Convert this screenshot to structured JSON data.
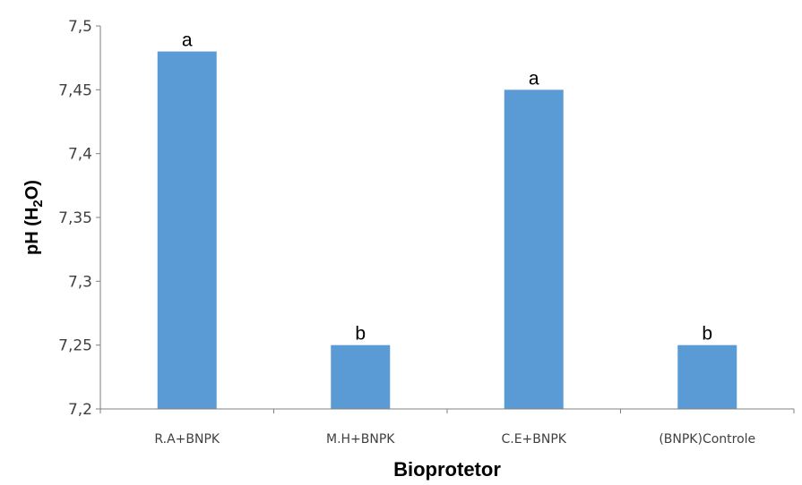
{
  "chart_data": {
    "type": "bar",
    "title": "",
    "xlabel": "Bioprotetor",
    "ylabel": "pH (H2O)",
    "ylabel_parts": [
      "pH (H",
      "2",
      "O)"
    ],
    "categories": [
      "R.A+BNPK",
      "M.H+BNPK",
      "C.E+BNPK",
      "(BNPK)Controle"
    ],
    "values": [
      7.48,
      7.25,
      7.45,
      7.25
    ],
    "data_labels": [
      "a",
      "b",
      "a",
      "b"
    ],
    "ylim": [
      7.2,
      7.5
    ],
    "yticks": [
      7.2,
      7.25,
      7.3,
      7.35,
      7.4,
      7.45,
      7.5
    ],
    "ytick_labels": [
      "7,2",
      "7,25",
      "7,3",
      "7,35",
      "7,4",
      "7,45",
      "7,5"
    ],
    "grid": false,
    "legend": "none",
    "colors": {
      "bar": "#5B9BD5",
      "axis": "#808080",
      "text": "#404040"
    }
  }
}
